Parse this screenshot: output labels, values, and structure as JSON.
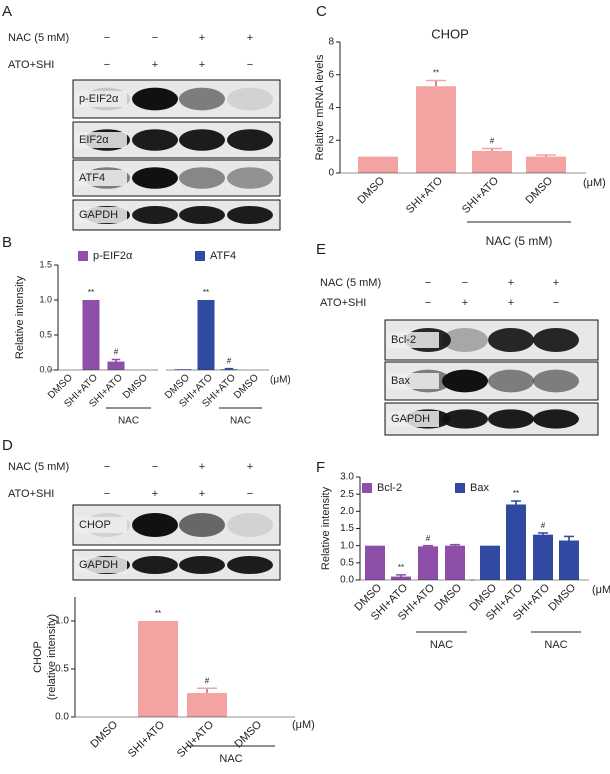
{
  "panel_labels": [
    "A",
    "B",
    "C",
    "D",
    "E",
    "F"
  ],
  "blots": [
    {
      "treatments": [
        {
          "label": "NAC (5 mM)",
          "signs": [
            "−",
            "−",
            "+",
            "+"
          ]
        },
        {
          "label": "ATO+SHI",
          "signs": [
            "−",
            "+",
            "+",
            "−"
          ]
        }
      ],
      "bands": [
        "p-EIF2α",
        "EIF2α",
        "ATF4",
        "GAPDH"
      ]
    },
    {
      "treatments": [
        {
          "label": "NAC (5 mM)",
          "signs": [
            "−",
            "−",
            "+",
            "+"
          ]
        },
        {
          "label": "ATO+SHI",
          "signs": [
            "−",
            "+",
            "+",
            "−"
          ]
        }
      ],
      "bands": [
        "CHOP",
        "GAPDH"
      ]
    },
    {
      "treatments": [
        {
          "label": "NAC (5 mM)",
          "signs": [
            "−",
            "−",
            "+",
            "+"
          ]
        },
        {
          "label": "ATO+SHI",
          "signs": [
            "−",
            "+",
            "+",
            "−"
          ]
        }
      ],
      "bands": [
        "Bcl-2",
        "Bax",
        "GAPDH"
      ]
    }
  ],
  "chart_data": [
    {
      "type": "bar",
      "ylabel": "Relative intensity",
      "categories": [
        "DMSO",
        "SHI+ATO",
        "SHI+ATO",
        "DMSO"
      ],
      "series": [
        {
          "name": "p-EIF2α",
          "color": "#8e4fa8",
          "values": [
            0,
            1.0,
            0.12,
            0
          ],
          "errors": [
            0,
            0,
            0.03,
            0
          ],
          "annotations": [
            null,
            "**",
            "#",
            null
          ]
        },
        {
          "name": "ATF4",
          "color": "#2f4aa0",
          "values": [
            0.01,
            1.0,
            0.01,
            0
          ],
          "errors": [
            0,
            0,
            0.01,
            0
          ],
          "annotations": [
            null,
            "**",
            "#",
            null
          ]
        }
      ],
      "unit": "(μM)",
      "group_label": "NAC",
      "ylim": [
        0,
        1.5
      ],
      "yticks": [
        {
          "value": 0,
          "label": "0.0"
        },
        {
          "value": 0.5,
          "label": "0.5"
        },
        {
          "value": 1,
          "label": "1.0"
        },
        {
          "value": 1.5,
          "label": "1.5"
        }
      ]
    },
    {
      "type": "bar",
      "title": "CHOP",
      "ylabel": "Relative mRNA levels",
      "categories": [
        "DMSO",
        "SHI+ATO",
        "SHI+ATO",
        "DMSO"
      ],
      "values": [
        1,
        5.3,
        1.35,
        1.0
      ],
      "errors": [
        0,
        0.35,
        0.15,
        0.1
      ],
      "annotations": [
        null,
        "**",
        "#",
        null
      ],
      "color": "#f4a3a3",
      "unit": "(μM)",
      "group_label": "NAC (5 mM)",
      "ylim": [
        0,
        8
      ],
      "yticks": [
        0,
        2,
        4,
        6,
        8
      ]
    },
    {
      "type": "bar",
      "ylabel": [
        "CHOP",
        "(relative intensity)"
      ],
      "categories": [
        "DMSO",
        "SHI+ATO",
        "SHI+ATO",
        "DMSO"
      ],
      "values": [
        0,
        1.0,
        0.25,
        0
      ],
      "errors": [
        0,
        0,
        0.05,
        0
      ],
      "annotations": [
        null,
        "**",
        "#",
        null
      ],
      "color": "#f4a3a3",
      "unit": "(μM)",
      "group_label": "NAC",
      "ylim": [
        0,
        1.25
      ],
      "yticks": [
        {
          "value": 0,
          "label": "0.0"
        },
        {
          "value": 0.5,
          "label": "0.5"
        },
        {
          "value": 1,
          "label": "1.0"
        }
      ]
    },
    {
      "type": "bar",
      "ylabel": "Relative intensity",
      "categories": [
        "DMSO",
        "SHI+ATO",
        "SHI+ATO",
        "DMSO"
      ],
      "series": [
        {
          "name": "Bcl-2",
          "color": "#8e4fa8",
          "values": [
            1.0,
            0.1,
            0.98,
            1.0
          ],
          "errors": [
            0,
            0.05,
            0.02,
            0.03
          ],
          "annotations": [
            null,
            "**",
            "#",
            null
          ]
        },
        {
          "name": "Bax",
          "color": "#2f4aa0",
          "values": [
            1.0,
            2.2,
            1.32,
            1.15
          ],
          "errors": [
            0,
            0.1,
            0.05,
            0.12
          ],
          "annotations": [
            null,
            "**",
            "#",
            null
          ]
        }
      ],
      "unit": "(μM)",
      "group_label": "NAC",
      "ylim": [
        0,
        3.0
      ],
      "yticks": [
        {
          "value": 0,
          "label": "0.0"
        },
        {
          "value": 0.5,
          "label": "0.5"
        },
        {
          "value": 1,
          "label": "1.0"
        },
        {
          "value": 1.5,
          "label": "1.5"
        },
        {
          "value": 2,
          "label": "2.0"
        },
        {
          "value": 2.5,
          "label": "2.5"
        },
        {
          "value": 3,
          "label": "3.0"
        }
      ]
    }
  ]
}
